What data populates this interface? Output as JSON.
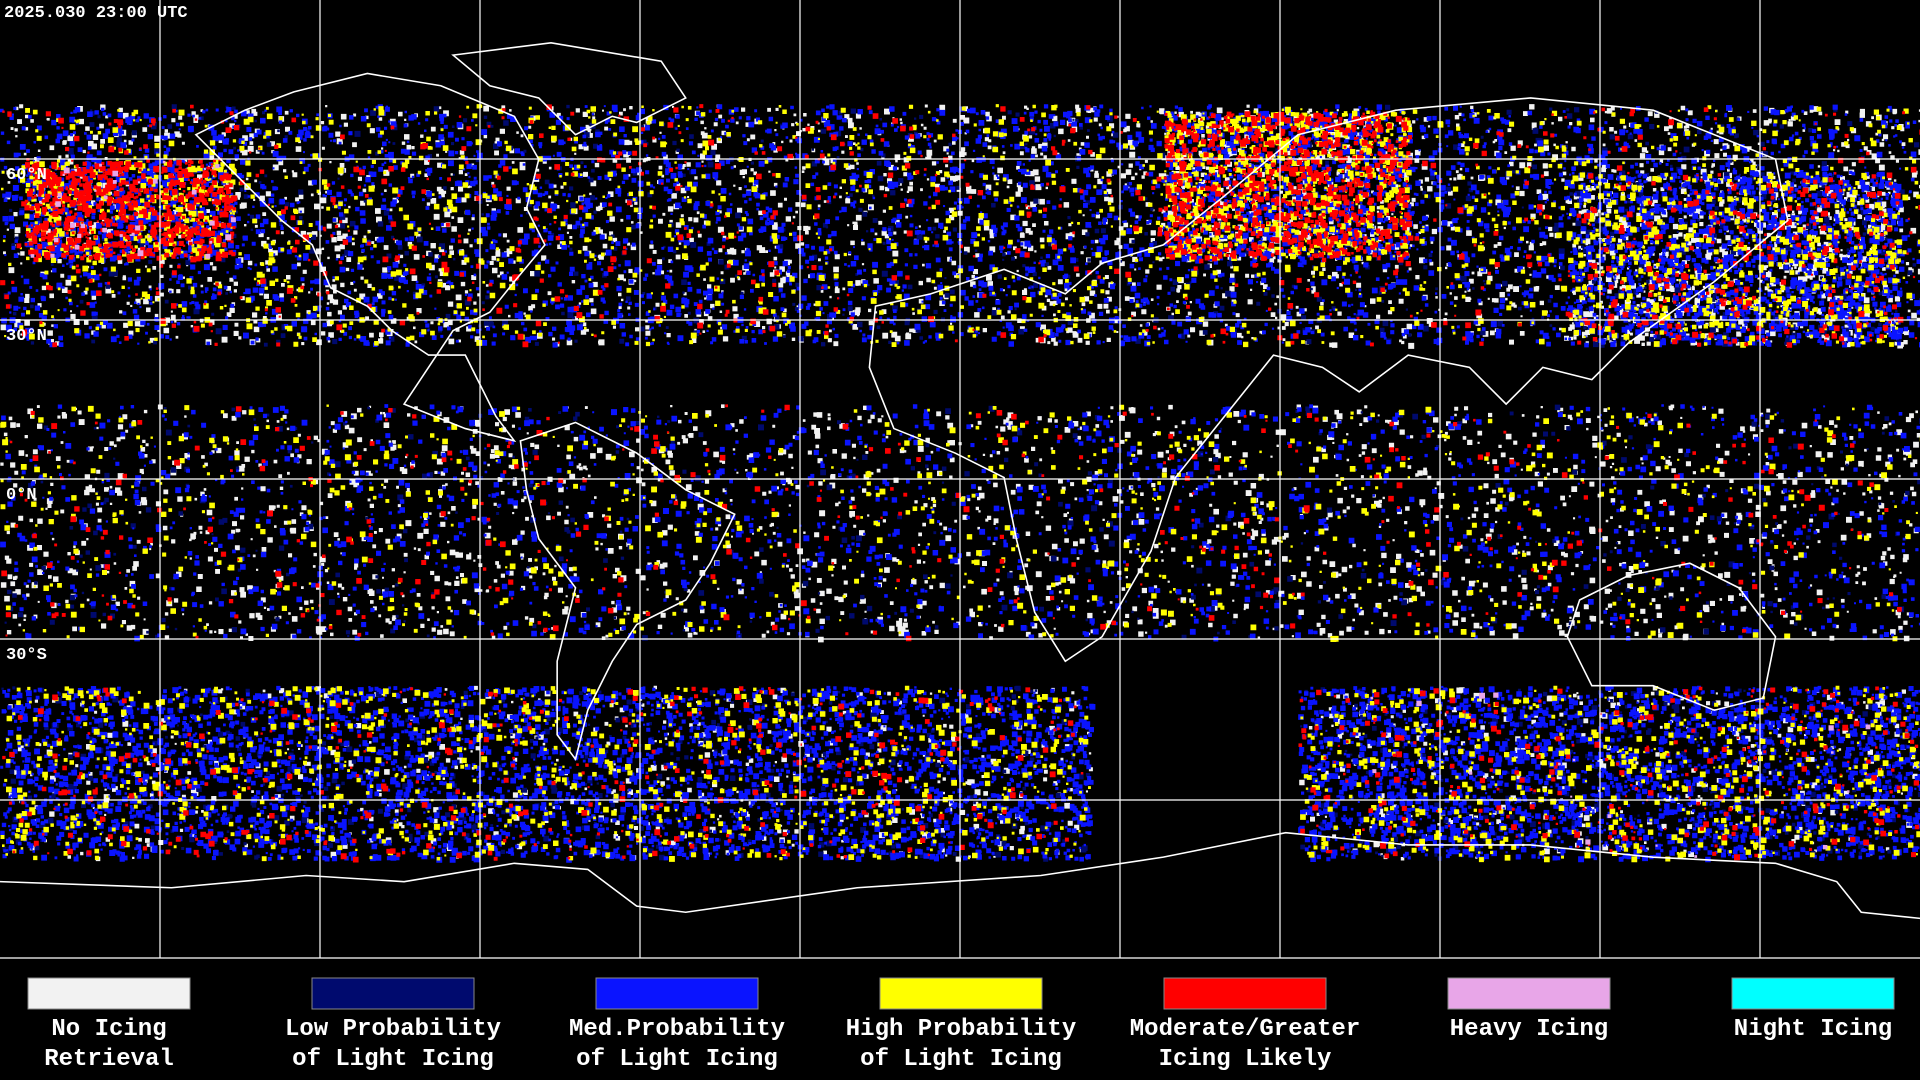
{
  "timestamp": "2025.030 23:00 UTC",
  "latitude_labels": [
    "60°N",
    "30°N",
    "0°N",
    "30°S"
  ],
  "legend": [
    {
      "lines": [
        "No Icing",
        "Retrieval"
      ],
      "color": "#f2f2f2"
    },
    {
      "lines": [
        "Low Probability",
        "of Light Icing"
      ],
      "color": "#000a6e"
    },
    {
      "lines": [
        "Med.Probability",
        "of Light Icing"
      ],
      "color": "#0a14ff"
    },
    {
      "lines": [
        "High Probability",
        "of Light Icing"
      ],
      "color": "#ffff00"
    },
    {
      "lines": [
        "Moderate/Greater",
        "Icing Likely"
      ],
      "color": "#ff0000"
    },
    {
      "lines": [
        "Heavy Icing"
      ],
      "color": "#e8a6e8"
    },
    {
      "lines": [
        "Night Icing"
      ],
      "color": "#00ffff"
    }
  ]
}
